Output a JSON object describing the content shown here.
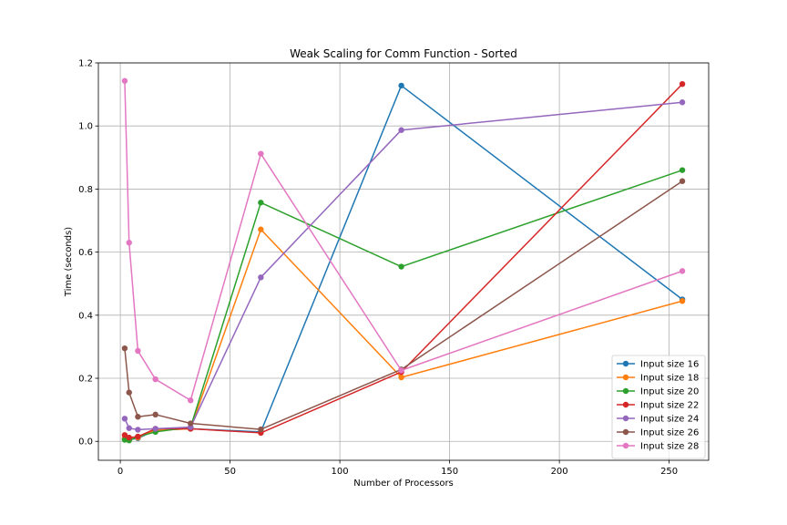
{
  "chart_data": {
    "type": "line",
    "title": "Weak Scaling for Comm Function - Sorted",
    "xlabel": "Number of Processors",
    "ylabel": "Time (seconds)",
    "xlim": [
      -10,
      268
    ],
    "ylim": [
      -0.06,
      1.2
    ],
    "xticks": [
      0,
      50,
      100,
      150,
      200,
      250
    ],
    "xtick_labels": [
      "0",
      "50",
      "100",
      "150",
      "200",
      "250"
    ],
    "yticks": [
      0.0,
      0.2,
      0.4,
      0.6,
      0.8,
      1.0,
      1.2
    ],
    "ytick_labels": [
      "0.0",
      "0.2",
      "0.4",
      "0.6",
      "0.8",
      "1.0",
      "1.2"
    ],
    "grid": true,
    "legend_position": "lower-right",
    "x": [
      2,
      4,
      8,
      16,
      32,
      64,
      128,
      256
    ],
    "series": [
      {
        "name": "Input size 16",
        "color": "#1f77b4",
        "values": [
          0.008,
          0.005,
          0.01,
          0.035,
          0.04,
          0.03,
          1.128,
          0.45
        ]
      },
      {
        "name": "Input size 18",
        "color": "#ff7f0e",
        "values": [
          0.01,
          0.008,
          0.012,
          0.035,
          0.04,
          0.672,
          0.203,
          0.445
        ]
      },
      {
        "name": "Input size 20",
        "color": "#2ca02c",
        "values": [
          0.005,
          0.003,
          0.015,
          0.03,
          0.045,
          0.757,
          0.554,
          0.86
        ]
      },
      {
        "name": "Input size 22",
        "color": "#d62728",
        "values": [
          0.02,
          0.012,
          0.015,
          0.04,
          0.04,
          0.027,
          0.22,
          1.133
        ]
      },
      {
        "name": "Input size 24",
        "color": "#9467bd",
        "values": [
          0.072,
          0.042,
          0.037,
          0.04,
          0.045,
          0.52,
          0.987,
          1.075
        ]
      },
      {
        "name": "Input size 26",
        "color": "#8c564b",
        "values": [
          0.295,
          0.155,
          0.078,
          0.085,
          0.057,
          0.038,
          0.228,
          0.825
        ]
      },
      {
        "name": "Input size 28",
        "color": "#e377c2",
        "values": [
          1.143,
          0.63,
          0.287,
          0.197,
          0.13,
          0.912,
          0.225,
          0.54
        ]
      }
    ]
  }
}
